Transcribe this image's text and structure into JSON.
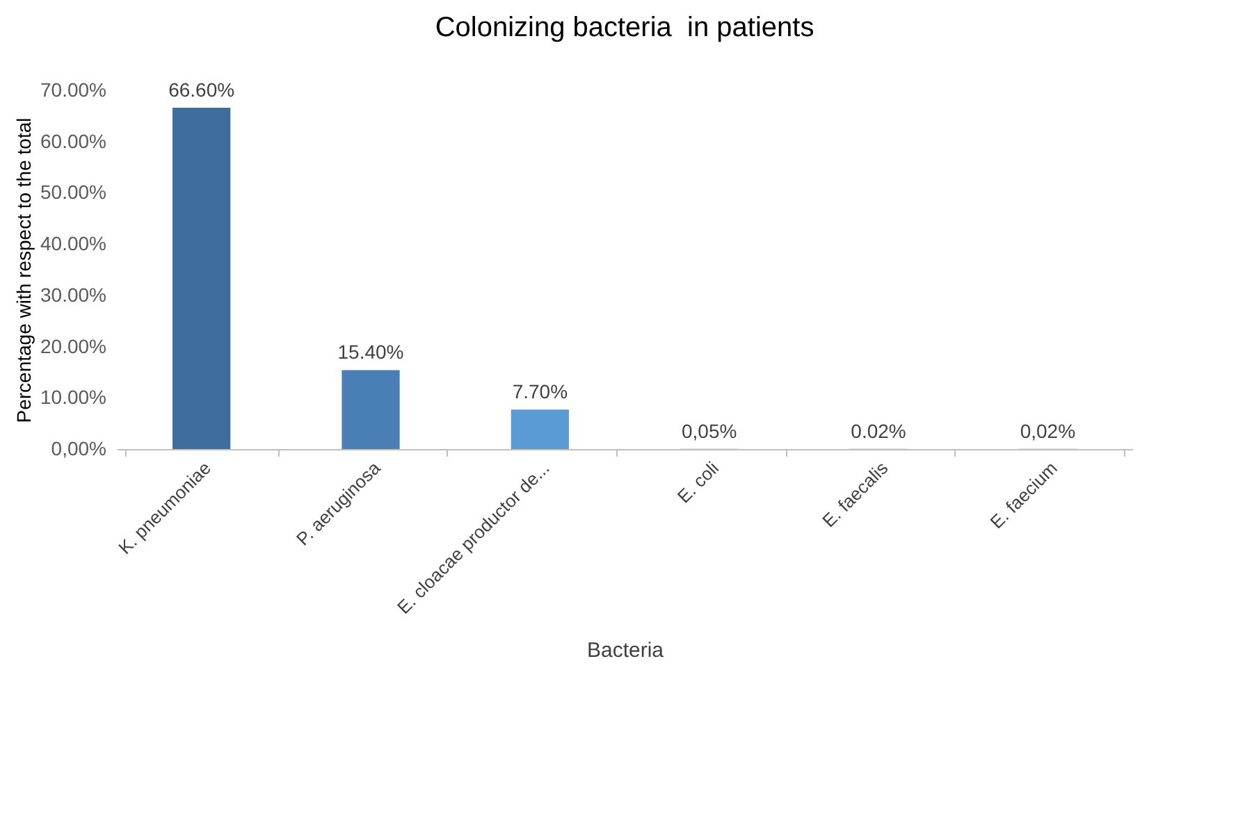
{
  "chart_data": {
    "type": "bar",
    "title": "Colonizing bacteria  in patients",
    "xlabel": "Bacteria",
    "ylabel": "Percentage with respect to the total",
    "categories": [
      "K. pneumoniae",
      "P. aeruginosa",
      "E. cloacae productor de...",
      "E. coli",
      "E. faecalis",
      "E. faecium"
    ],
    "values": [
      66.6,
      15.4,
      7.7,
      0.05,
      0.02,
      0.02
    ],
    "colors": [
      "#3e6d9c",
      "#4a7fb6",
      "#5b9bd5",
      "#5b9bd5",
      "#5b9bd5",
      "#5b9bd5"
    ],
    "value_labels": [
      "66.60%",
      "15.40%",
      "7.70%",
      "0,05%",
      "0.02%",
      "0,02%"
    ],
    "ylim": [
      0,
      70
    ],
    "yticks": [
      {
        "value": 0,
        "label": "0,00%"
      },
      {
        "value": 10,
        "label": "10.00%"
      },
      {
        "value": 20,
        "label": "20.00%"
      },
      {
        "value": 30,
        "label": "30.00%"
      },
      {
        "value": 40,
        "label": "40.00%"
      },
      {
        "value": 50,
        "label": "50.00%"
      },
      {
        "value": 60,
        "label": "60.00%"
      },
      {
        "value": 70,
        "label": "70.00%"
      }
    ],
    "grid": false
  }
}
